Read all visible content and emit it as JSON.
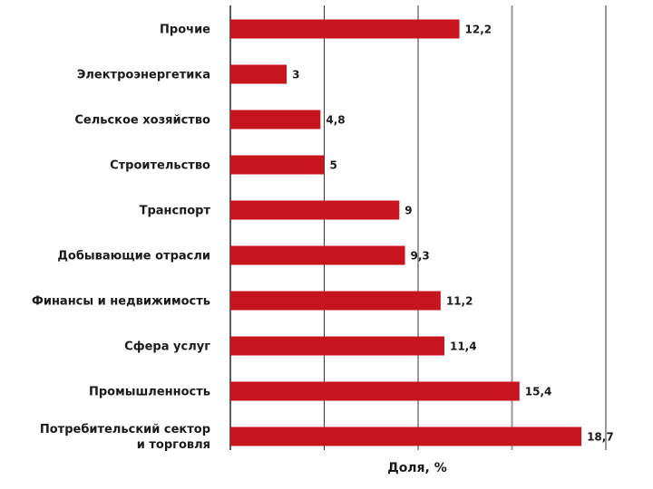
{
  "chart_data": {
    "type": "bar",
    "orientation": "horizontal",
    "categories": [
      "Прочие",
      "Электроэнергетика",
      "Сельское хозяйство",
      "Строительство",
      "Транспорт",
      "Добывающие отрасли",
      "Финансы и недвижимость",
      "Сфера услуг",
      "Промышленность",
      [
        "Потребительский сектор",
        "и торговля"
      ]
    ],
    "values": [
      12.2,
      3,
      4.8,
      5,
      9,
      9.3,
      11.2,
      11.4,
      15.4,
      18.7
    ],
    "value_labels": [
      "12,2",
      "3",
      "4,8",
      "5",
      "9",
      "9,3",
      "11,2",
      "11,4",
      "15,4",
      "18,7"
    ],
    "xlabel": "Доля, %",
    "xlim": [
      0,
      20
    ],
    "grid": true,
    "bar_color": "#c8141c",
    "gridline_color": "#333333",
    "emphasis_gridline_color": "#999999"
  }
}
